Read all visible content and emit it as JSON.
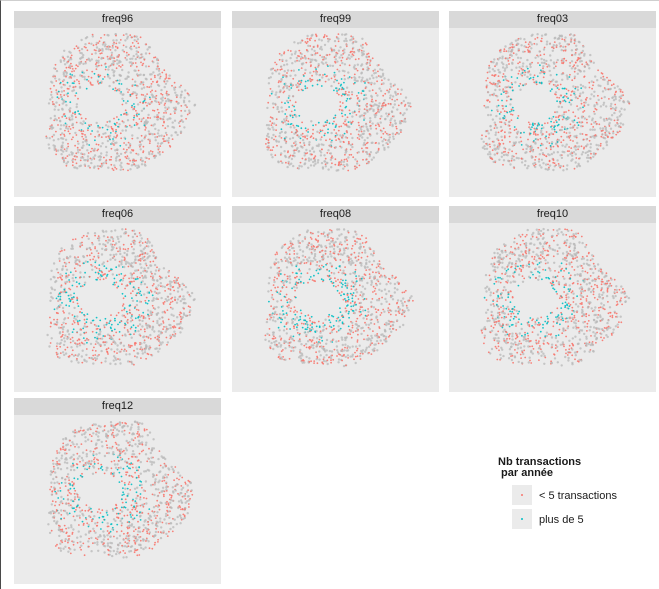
{
  "facets": [
    {
      "title": "freq96",
      "share_frequent": 0.16
    },
    {
      "title": "freq99",
      "share_frequent": 0.2
    },
    {
      "title": "freq03",
      "share_frequent": 0.19
    },
    {
      "title": "freq06",
      "share_frequent": 0.25
    },
    {
      "title": "freq08",
      "share_frequent": 0.24
    },
    {
      "title": "freq10",
      "share_frequent": 0.22
    },
    {
      "title": "freq12",
      "share_frequent": 0.2
    }
  ],
  "legend": {
    "title": "Nb transactions\n par année",
    "items": [
      {
        "label": "< 5 transactions",
        "color": "#f8766d"
      },
      {
        "label": "plus de 5",
        "color": "#00bfc4"
      }
    ]
  },
  "colors": {
    "panel_background": "#ebebeb",
    "strip_background": "#d9d9d9",
    "empty_commune": "#b8b8b8",
    "few_transactions": "#f8766d",
    "many_transactions": "#00bfc4"
  }
}
